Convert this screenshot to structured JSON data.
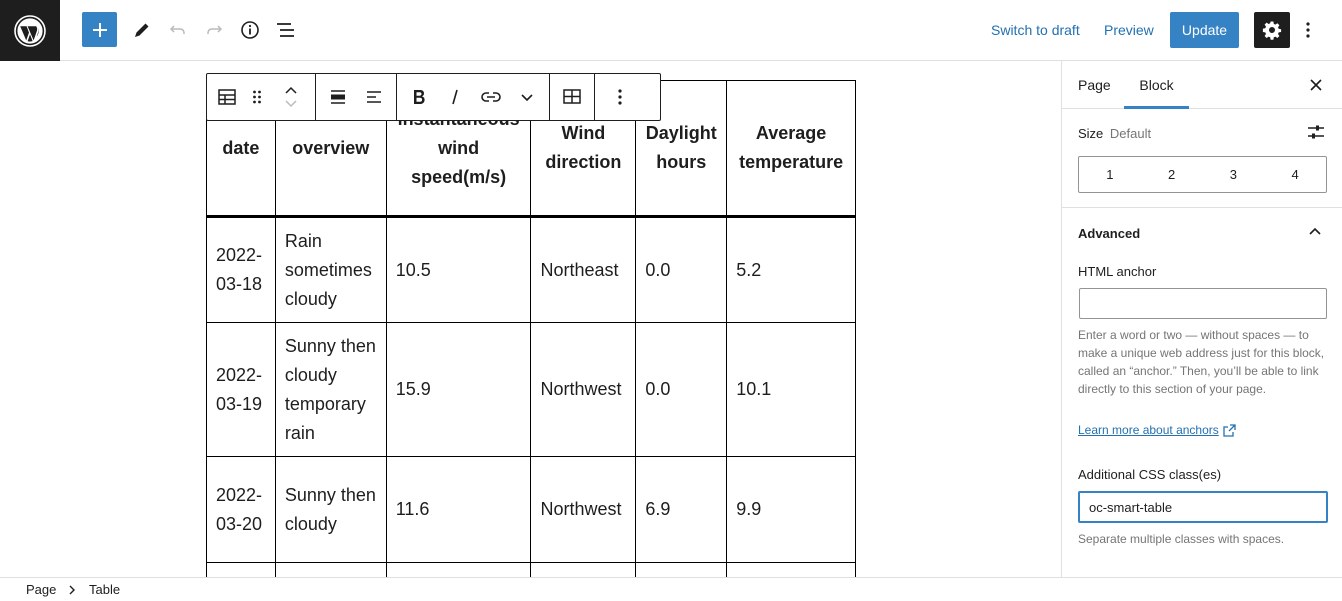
{
  "topbar": {
    "switch_to_draft": "Switch to draft",
    "preview": "Preview",
    "update": "Update"
  },
  "block_sidebar": {
    "tabs": [
      "Page",
      "Block"
    ],
    "active_tab": "Block",
    "size_label": "Size",
    "size_value": "Default",
    "size_options": [
      "1",
      "2",
      "3",
      "4"
    ],
    "advanced_title": "Advanced",
    "html_anchor_label": "HTML anchor",
    "html_anchor_value": "",
    "html_anchor_help": "Enter a word or two — without spaces — to make a unique web address just for this block, called an “anchor.” Then, you’ll be able to link directly to this section of your page.",
    "learn_more_link": "Learn more about anchors",
    "css_class_label": "Additional CSS class(es)",
    "css_class_value": "oc-smart-table",
    "css_class_help": "Separate multiple classes with spaces."
  },
  "table": {
    "headers": [
      "date",
      "overview",
      "instantaneous wind speed(m/s)",
      "Wind direction",
      "Daylight hours",
      "Average temperature"
    ],
    "rows": [
      [
        "2022-03-18",
        "Rain sometimes cloudy",
        "10.5",
        "Northeast",
        "0.0",
        "5.2"
      ],
      [
        "2022-03-19",
        "Sunny then cloudy temporary rain",
        "15.9",
        "Northwest",
        "0.0",
        "10.1"
      ],
      [
        "2022-03-20",
        "Sunny then cloudy",
        "11.6",
        "Northwest",
        "6.9",
        "9.9"
      ]
    ]
  },
  "breadcrumb": [
    "Page",
    "Table"
  ],
  "colors": {
    "accent": "#3582c4",
    "link": "#2271b1",
    "dark": "#1e1e1e"
  },
  "icons": [
    "wordpress-logo-icon",
    "plus-icon",
    "pencil-icon",
    "undo-icon",
    "redo-icon",
    "info-icon",
    "list-view-icon",
    "gear-icon",
    "more-vertical-icon",
    "table-icon",
    "drag-handle-icon",
    "move-up-icon",
    "move-down-icon",
    "align-wide-icon",
    "align-left-icon",
    "bold-icon",
    "italic-icon",
    "link-icon",
    "chevron-down-icon",
    "table-edit-icon",
    "close-icon",
    "sliders-icon",
    "chevron-up-icon",
    "external-link-icon",
    "chevron-right-icon"
  ]
}
